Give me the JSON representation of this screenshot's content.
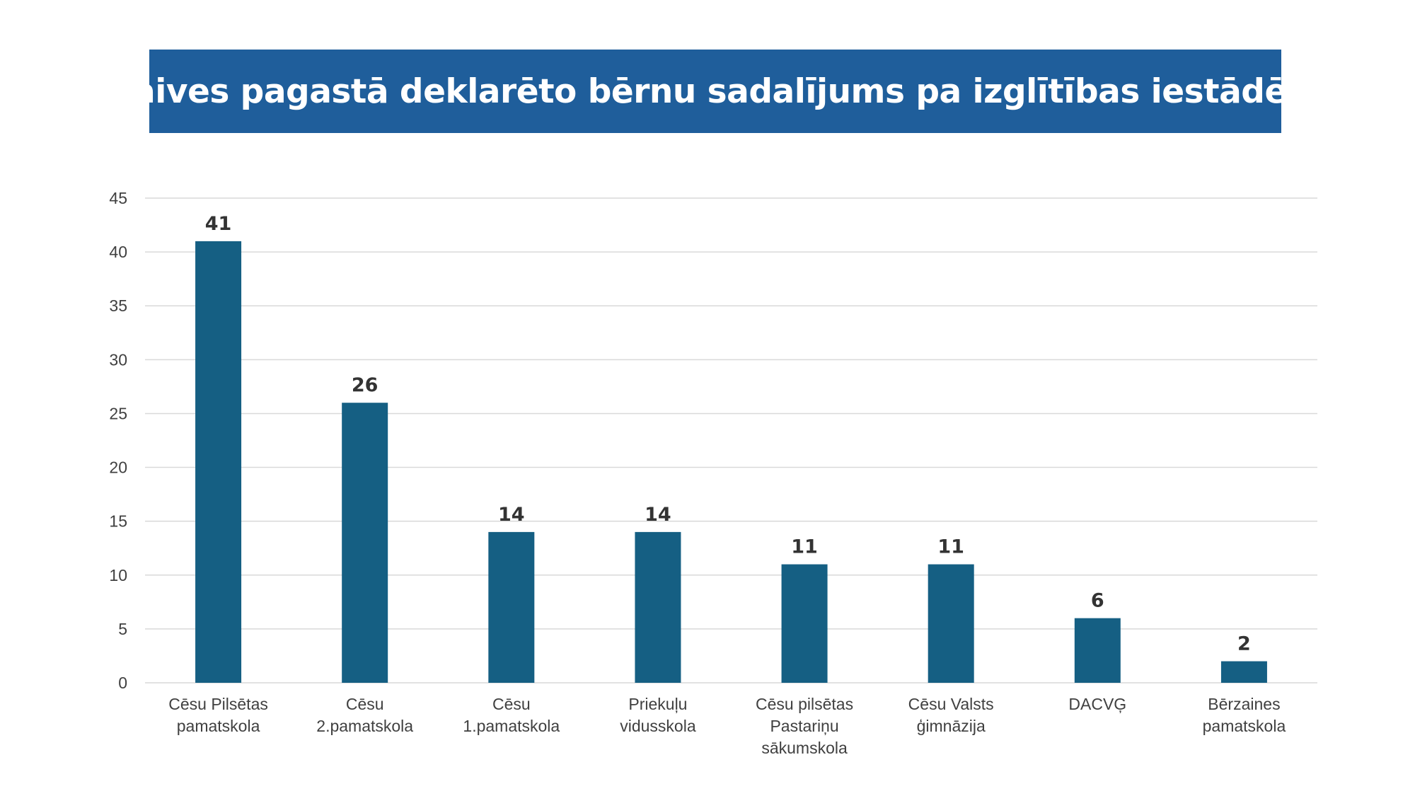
{
  "colors": {
    "banner": "#1f5e9b",
    "bar": "#155f83",
    "grid": "#d9d9d9",
    "text": "#404040"
  },
  "chart_data": {
    "type": "bar",
    "title": "Vaives pagastā deklarēto bērnu sadalījums pa izglītības iestādēm",
    "xlabel": "",
    "ylabel": "",
    "ylim": [
      0,
      45
    ],
    "yticks": [
      0,
      5,
      10,
      15,
      20,
      25,
      30,
      35,
      40,
      45
    ],
    "grid": true,
    "categories": [
      [
        "Cēsu Pilsētas",
        "pamatskola"
      ],
      [
        "Cēsu",
        "2.pamatskola"
      ],
      [
        "Cēsu",
        "1.pamatskola"
      ],
      [
        "Priekuļu",
        "vidusskola"
      ],
      [
        "Cēsu pilsētas",
        "Pastariņu",
        "sākumskola"
      ],
      [
        "Cēsu Valsts",
        "ģimnāzija"
      ],
      [
        "DACVĢ"
      ],
      [
        "Bērzaines",
        "pamatskola"
      ]
    ],
    "values": [
      41,
      26,
      14,
      14,
      11,
      11,
      6,
      2
    ]
  }
}
